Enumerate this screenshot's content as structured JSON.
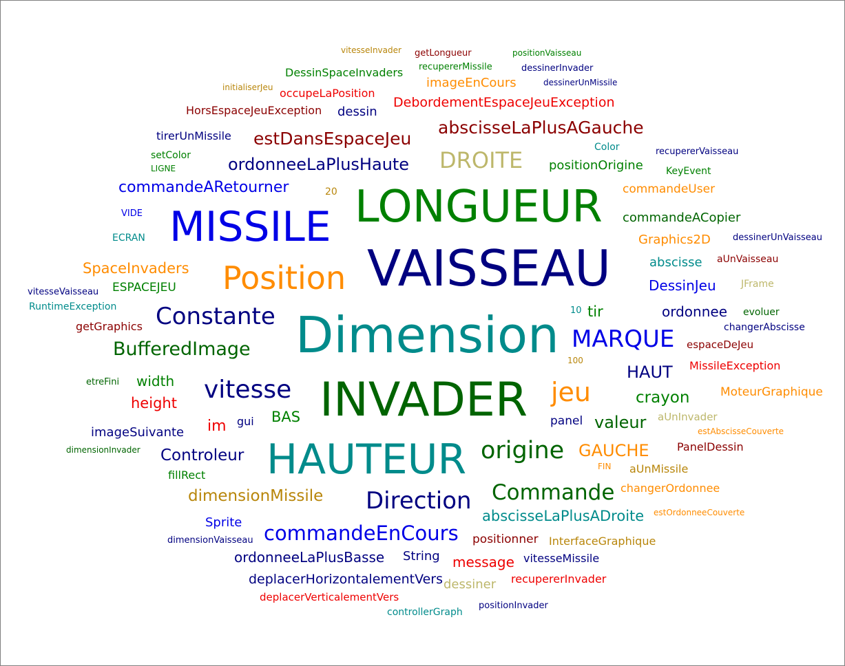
{
  "colors": {
    "blue": "#0000e6",
    "navy": "#000080",
    "green": "#008000",
    "darkgreen": "#006400",
    "teal": "#008b8b",
    "orange": "#ff8c00",
    "darkred": "#8b0000",
    "red": "#ee0000",
    "khaki": "#bdb76b",
    "goldenrod": "#b8860b"
  },
  "words": [
    {
      "text": "vitesseInvader",
      "color": "goldenrod"
    },
    {
      "text": "getLongueur",
      "color": "darkred"
    },
    {
      "text": "positionVaisseau",
      "color": "green"
    },
    {
      "text": "DessinSpaceInvaders",
      "color": "green"
    },
    {
      "text": "recupererMissile",
      "color": "green"
    },
    {
      "text": "dessinerInvader",
      "color": "navy"
    },
    {
      "text": "initialiserJeu",
      "color": "goldenrod"
    },
    {
      "text": "occupeLaPosition",
      "color": "red"
    },
    {
      "text": "imageEnCours",
      "color": "orange"
    },
    {
      "text": "dessinerUnMissile",
      "color": "navy"
    },
    {
      "text": "HorsEspaceJeuException",
      "color": "darkred"
    },
    {
      "text": "dessin",
      "color": "navy"
    },
    {
      "text": "DebordementEspaceJeuException",
      "color": "red"
    },
    {
      "text": "abscisseLaPlusAGauche",
      "color": "darkred"
    },
    {
      "text": "tirerUnMissile",
      "color": "navy"
    },
    {
      "text": "estDansEspaceJeu",
      "color": "darkred"
    },
    {
      "text": "Color",
      "color": "teal"
    },
    {
      "text": "recupererVaisseau",
      "color": "navy"
    },
    {
      "text": "setColor",
      "color": "green"
    },
    {
      "text": "DROITE",
      "color": "khaki"
    },
    {
      "text": "LIGNE",
      "color": "green"
    },
    {
      "text": "ordonneeLaPlusHaute",
      "color": "navy"
    },
    {
      "text": "positionOrigine",
      "color": "green"
    },
    {
      "text": "KeyEvent",
      "color": "green"
    },
    {
      "text": "commandeARetourner",
      "color": "blue"
    },
    {
      "text": "20",
      "color": "goldenrod"
    },
    {
      "text": "commandeUser",
      "color": "orange"
    },
    {
      "text": "LONGUEUR",
      "color": "green"
    },
    {
      "text": "VIDE",
      "color": "blue"
    },
    {
      "text": "MISSILE",
      "color": "blue"
    },
    {
      "text": "commandeACopier",
      "color": "darkgreen"
    },
    {
      "text": "ECRAN",
      "color": "teal"
    },
    {
      "text": "Graphics2D",
      "color": "orange"
    },
    {
      "text": "dessinerUnVaisseau",
      "color": "navy"
    },
    {
      "text": "VAISSEAU",
      "color": "navy"
    },
    {
      "text": "SpaceInvaders",
      "color": "orange"
    },
    {
      "text": "abscisse",
      "color": "teal"
    },
    {
      "text": "aUnVaisseau",
      "color": "darkred"
    },
    {
      "text": "Position",
      "color": "orange"
    },
    {
      "text": "vitesseVaisseau",
      "color": "navy"
    },
    {
      "text": "ESPACEJEU",
      "color": "green"
    },
    {
      "text": "DessinJeu",
      "color": "blue"
    },
    {
      "text": "JFrame",
      "color": "khaki"
    },
    {
      "text": "RuntimeException",
      "color": "teal"
    },
    {
      "text": "10",
      "color": "teal"
    },
    {
      "text": "tir",
      "color": "green"
    },
    {
      "text": "ordonnee",
      "color": "navy"
    },
    {
      "text": "evoluer",
      "color": "darkgreen"
    },
    {
      "text": "Constante",
      "color": "navy"
    },
    {
      "text": "changerAbscisse",
      "color": "navy"
    },
    {
      "text": "getGraphics",
      "color": "darkred"
    },
    {
      "text": "Dimension",
      "color": "teal"
    },
    {
      "text": "MARQUE",
      "color": "blue"
    },
    {
      "text": "espaceDeJeu",
      "color": "darkred"
    },
    {
      "text": "BufferedImage",
      "color": "darkgreen"
    },
    {
      "text": "100",
      "color": "goldenrod"
    },
    {
      "text": "MissileException",
      "color": "red"
    },
    {
      "text": "HAUT",
      "color": "navy"
    },
    {
      "text": "etreFini",
      "color": "darkgreen"
    },
    {
      "text": "width",
      "color": "green"
    },
    {
      "text": "vitesse",
      "color": "navy"
    },
    {
      "text": "INVADER",
      "color": "darkgreen"
    },
    {
      "text": "jeu",
      "color": "orange"
    },
    {
      "text": "crayon",
      "color": "green"
    },
    {
      "text": "MoteurGraphique",
      "color": "orange"
    },
    {
      "text": "height",
      "color": "red"
    },
    {
      "text": "BAS",
      "color": "green"
    },
    {
      "text": "panel",
      "color": "navy"
    },
    {
      "text": "valeur",
      "color": "darkgreen"
    },
    {
      "text": "aUnInvader",
      "color": "khaki"
    },
    {
      "text": "im",
      "color": "red"
    },
    {
      "text": "gui",
      "color": "navy"
    },
    {
      "text": "estAbscisseCouverte",
      "color": "orange"
    },
    {
      "text": "imageSuivante",
      "color": "navy"
    },
    {
      "text": "dimensionInvader",
      "color": "darkgreen"
    },
    {
      "text": "HAUTEUR",
      "color": "teal"
    },
    {
      "text": "origine",
      "color": "darkgreen"
    },
    {
      "text": "GAUCHE",
      "color": "orange"
    },
    {
      "text": "PanelDessin",
      "color": "darkred"
    },
    {
      "text": "Controleur",
      "color": "navy"
    },
    {
      "text": "FIN",
      "color": "orange"
    },
    {
      "text": "aUnMissile",
      "color": "goldenrod"
    },
    {
      "text": "fillRect",
      "color": "green"
    },
    {
      "text": "dimensionMissile",
      "color": "goldenrod"
    },
    {
      "text": "Direction",
      "color": "navy"
    },
    {
      "text": "Commande",
      "color": "darkgreen"
    },
    {
      "text": "changerOrdonnee",
      "color": "orange"
    },
    {
      "text": "abscisseLaPlusADroite",
      "color": "teal"
    },
    {
      "text": "estOrdonneeCouverte",
      "color": "orange"
    },
    {
      "text": "Sprite",
      "color": "blue"
    },
    {
      "text": "commandeEnCours",
      "color": "blue"
    },
    {
      "text": "dimensionVaisseau",
      "color": "navy"
    },
    {
      "text": "positionner",
      "color": "darkred"
    },
    {
      "text": "InterfaceGraphique",
      "color": "goldenrod"
    },
    {
      "text": "ordonneeLaPlusBasse",
      "color": "navy"
    },
    {
      "text": "String",
      "color": "navy"
    },
    {
      "text": "message",
      "color": "red"
    },
    {
      "text": "vitesseMissile",
      "color": "navy"
    },
    {
      "text": "deplacerHorizontalementVers",
      "color": "navy"
    },
    {
      "text": "recupererInvader",
      "color": "red"
    },
    {
      "text": "dessiner",
      "color": "khaki"
    },
    {
      "text": "deplacerVerticalementVers",
      "color": "red"
    },
    {
      "text": "controllerGraph",
      "color": "teal"
    },
    {
      "text": "positionInvader",
      "color": "navy"
    }
  ]
}
